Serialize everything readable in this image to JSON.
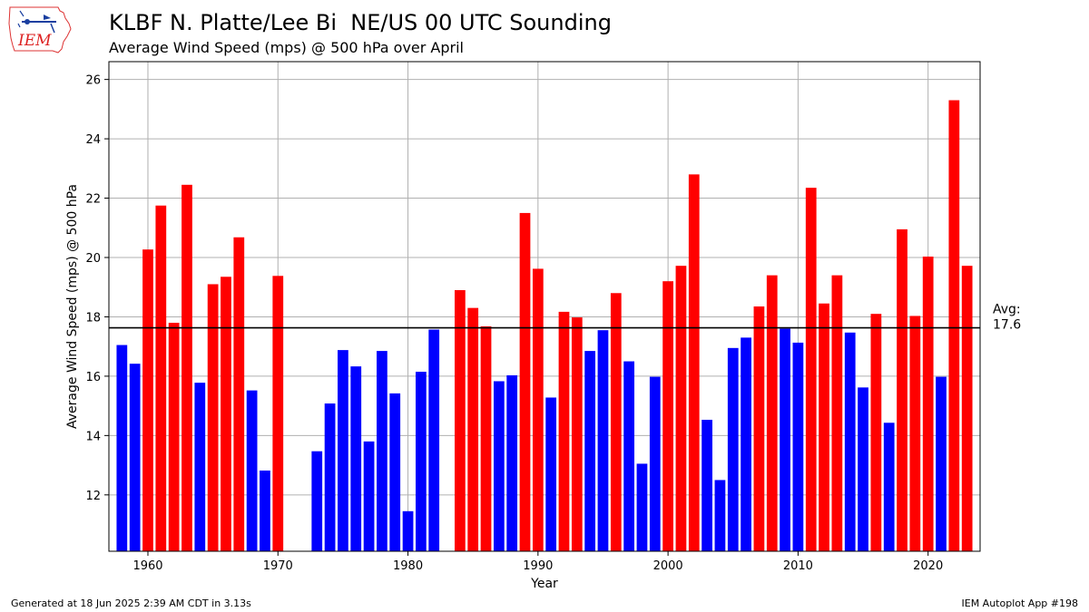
{
  "header": {
    "title": "KLBF N. Platte/Lee Bi  NE/US 00 UTC Sounding",
    "subtitle": "Average Wind Speed (mps) @ 500 hPa over April",
    "logo_text": "IEM"
  },
  "footer": {
    "left": "Generated at 18 Jun 2025 2:39 AM CDT in 3.13s",
    "right": "IEM Autoplot App #198"
  },
  "colors": {
    "above_avg": "#ff0000",
    "below_avg": "#0000ff",
    "grid": "#b0b0b0",
    "avg_line": "#000000"
  },
  "chart_data": {
    "type": "bar",
    "xlabel": "Year",
    "ylabel": "Average Wind Speed (mps) @ 500 hPa",
    "xlim": [
      1957,
      2024
    ],
    "ylim": [
      10.1,
      26.6
    ],
    "xticks": [
      1960,
      1970,
      1980,
      1990,
      2000,
      2010,
      2020
    ],
    "yticks": [
      12,
      14,
      16,
      18,
      20,
      22,
      24,
      26
    ],
    "grid": true,
    "average": 17.63,
    "average_label": "Avg:\n17.6",
    "x": [
      1958,
      1959,
      1960,
      1961,
      1962,
      1963,
      1964,
      1965,
      1966,
      1967,
      1968,
      1969,
      1970,
      1973,
      1974,
      1975,
      1976,
      1977,
      1978,
      1979,
      1980,
      1981,
      1982,
      1984,
      1985,
      1986,
      1987,
      1988,
      1989,
      1990,
      1991,
      1992,
      1993,
      1994,
      1995,
      1996,
      1997,
      1998,
      1999,
      2000,
      2001,
      2002,
      2003,
      2004,
      2005,
      2006,
      2007,
      2008,
      2009,
      2010,
      2011,
      2012,
      2013,
      2014,
      2015,
      2016,
      2017,
      2018,
      2019,
      2020,
      2021,
      2022,
      2023
    ],
    "values": [
      17.05,
      16.42,
      20.27,
      21.75,
      17.8,
      22.45,
      15.78,
      19.1,
      19.35,
      20.68,
      15.52,
      12.82,
      19.38,
      13.47,
      15.08,
      16.88,
      16.33,
      13.8,
      16.85,
      15.42,
      11.45,
      16.15,
      17.57,
      18.9,
      18.3,
      17.68,
      15.83,
      16.03,
      21.5,
      19.62,
      15.28,
      18.17,
      17.98,
      16.85,
      17.55,
      18.8,
      16.5,
      13.05,
      15.98,
      19.2,
      19.72,
      22.8,
      14.53,
      12.5,
      16.95,
      17.3,
      18.35,
      19.4,
      17.6,
      17.13,
      22.35,
      18.45,
      19.4,
      17.47,
      15.62,
      18.1,
      14.43,
      20.95,
      18.03,
      20.03,
      15.98,
      25.3,
      19.72
    ]
  }
}
